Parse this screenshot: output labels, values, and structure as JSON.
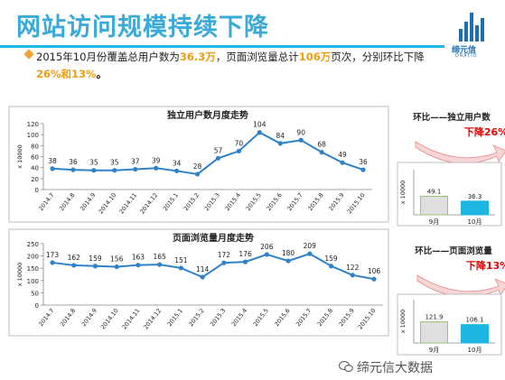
{
  "slide": {
    "title": "网站访问规模持续下降",
    "summary_line1_a": "2015年10月份覆盖总用户数为",
    "summary_uv": "36.3万",
    "summary_line1_b": "，页面浏览量总计",
    "summary_pv": "106万",
    "summary_line1_c": "页次，分别环比下降",
    "summary_pct": "26%和13%",
    "summary_end": "。",
    "logo_text": "缔元信",
    "logo_sub": "DRATIO",
    "watermark": "缔元信大数据",
    "accent_color": "#1fb9e6",
    "highlight_color": "#f29b10",
    "line_color": "#2f82c8",
    "bar_color": "#1db6e3",
    "bar_gray": "#dfdfdf",
    "down_color": "#e60000"
  },
  "chart_data": [
    {
      "type": "line",
      "title": "独立用户数月度走势",
      "ylabel": "x 10000",
      "categories": [
        "2014.7",
        "2014.8",
        "2014.9",
        "2014.10",
        "2014.11",
        "2014.12",
        "2015.1",
        "2015.2",
        "2015.3",
        "2015.4",
        "2015.5",
        "2015.6",
        "2015.7",
        "2015.8",
        "2015.9",
        "2015.10"
      ],
      "values": [
        38,
        36,
        35,
        35,
        37,
        39,
        34,
        28,
        57,
        70,
        104,
        84,
        90,
        68,
        49,
        36
      ],
      "labels": [
        "38",
        "36",
        "35",
        "35",
        "37",
        "39",
        "34",
        "28",
        "57",
        "70",
        "104",
        "84",
        "90",
        "68",
        "49",
        "36"
      ],
      "ylim": [
        0,
        120
      ],
      "yticks": [
        "0",
        "20",
        "40",
        "60",
        "80",
        "100",
        "120"
      ],
      "grid": false
    },
    {
      "type": "line",
      "title": "页面浏览量月度走势",
      "ylabel": "x 10000",
      "categories": [
        "2014.7",
        "2014.8",
        "2014.9",
        "2014.10",
        "2014.11",
        "2014.12",
        "2015.1",
        "2015.2",
        "2015.3",
        "2015.4",
        "2015.5",
        "2015.6",
        "2015.7",
        "2015.8",
        "2015.9",
        "2015.10"
      ],
      "values": [
        173,
        162,
        159,
        156,
        163,
        165,
        151,
        114,
        172,
        176,
        206,
        180,
        209,
        159,
        122,
        106
      ],
      "labels": [
        "173",
        "162",
        "159",
        "156",
        "163",
        "165",
        "151",
        "114",
        "172",
        "176",
        "206",
        "180",
        "209",
        "159",
        "122",
        "106"
      ],
      "ylim": [
        0,
        250
      ],
      "yticks": [
        "0",
        "50",
        "100",
        "150",
        "200",
        "250"
      ],
      "grid": false
    },
    {
      "type": "bar",
      "title": "环比——独立用户数",
      "note": "下降26%",
      "ylabel": "x 10000",
      "categories": [
        "9月",
        "10月"
      ],
      "values": [
        49.1,
        36.3
      ],
      "labels": [
        "49.1",
        "36.3"
      ],
      "ylim": [
        0,
        120
      ]
    },
    {
      "type": "bar",
      "title": "环比——页面浏览量",
      "note": "下降13%",
      "ylabel": "x 10000",
      "categories": [
        "9月",
        "10月"
      ],
      "values": [
        121.9,
        106.1
      ],
      "labels": [
        "121.9",
        "106.1"
      ],
      "ylim": [
        0,
        250
      ]
    }
  ]
}
